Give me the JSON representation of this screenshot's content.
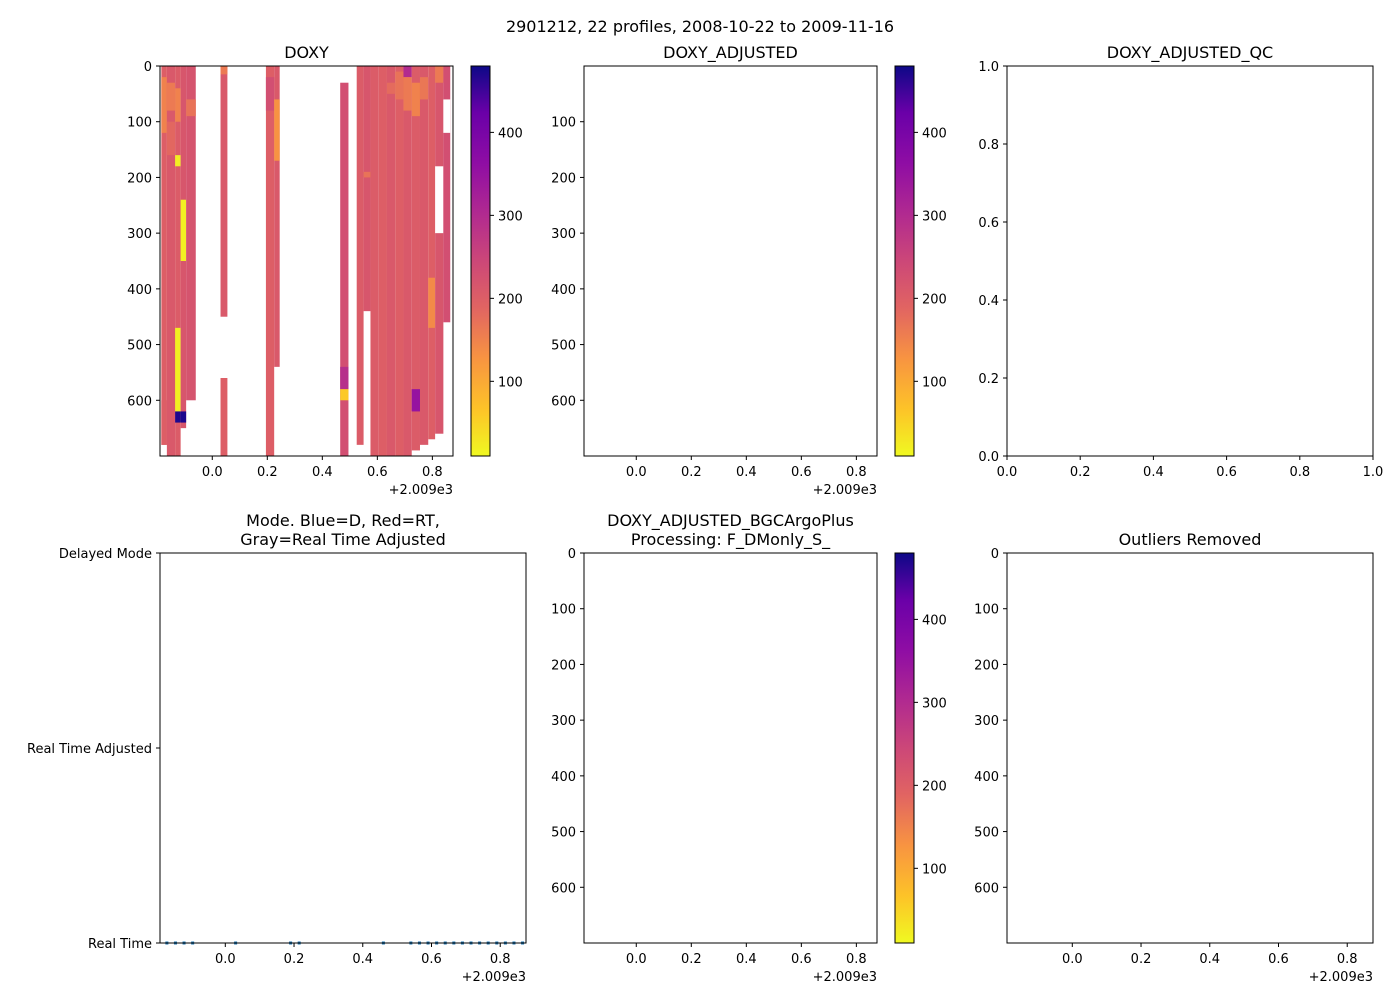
{
  "figure": {
    "suptitle": "2901212, 22 profiles, 2008-10-22 to 2009-11-16",
    "offset_label": "+2.009e3"
  },
  "chart_data": [
    {
      "id": "doxy",
      "type": "heatmap",
      "title": "DOXY",
      "xlim": [
        -0.19,
        0.875
      ],
      "ylim": [
        700,
        0
      ],
      "x_ticks": [
        "0.0",
        "0.2",
        "0.4",
        "0.6",
        "0.8"
      ],
      "y_ticks": [
        "0",
        "100",
        "200",
        "300",
        "400",
        "500",
        "600"
      ],
      "colormap": "plasma_r",
      "colorbar": {
        "range": [
          10,
          480
        ],
        "ticks": [
          "100",
          "200",
          "300",
          "400"
        ]
      },
      "columns": [
        {
          "x0": -0.185,
          "x1": -0.165,
          "z0": 0,
          "z1": 680,
          "value": 200,
          "patches": [
            {
              "z0": 20,
              "z1": 120,
              "value": 150
            },
            {
              "z0": 600,
              "z1": 680,
              "value": 200
            }
          ]
        },
        {
          "x0": -0.165,
          "x1": -0.135,
          "z0": 0,
          "z1": 700,
          "value": 210,
          "patches": [
            {
              "z0": 30,
              "z1": 80,
              "value": 160
            },
            {
              "z0": 100,
              "z1": 160,
              "value": 185
            }
          ]
        },
        {
          "x0": -0.135,
          "x1": -0.115,
          "z0": 0,
          "z1": 700,
          "value": 205,
          "patches": [
            {
              "z0": 40,
              "z1": 100,
              "value": 150
            },
            {
              "z0": 160,
              "z1": 180,
              "value": 20
            },
            {
              "z0": 470,
              "z1": 620,
              "value": 20
            },
            {
              "z0": 620,
              "z1": 640,
              "value": 470
            }
          ]
        },
        {
          "x0": -0.115,
          "x1": -0.095,
          "z0": 0,
          "z1": 650,
          "value": 215,
          "patches": [
            {
              "z0": 240,
              "z1": 350,
              "value": 20
            },
            {
              "z0": 620,
              "z1": 640,
              "value": 470
            }
          ]
        },
        {
          "x0": -0.095,
          "x1": -0.06,
          "z0": 0,
          "z1": 600,
          "value": 220,
          "patches": [
            {
              "z0": 60,
              "z1": 90,
              "value": 170
            }
          ]
        },
        {
          "x0": 0.03,
          "x1": 0.055,
          "z0": 0,
          "z1": 450,
          "value": 210,
          "patches": [
            {
              "z0": 0,
              "z1": 15,
              "value": 160
            }
          ]
        },
        {
          "x0": 0.03,
          "x1": 0.055,
          "z0": 560,
          "z1": 700,
          "value": 200,
          "patches": []
        },
        {
          "x0": 0.195,
          "x1": 0.225,
          "z0": 0,
          "z1": 700,
          "value": 200,
          "patches": [
            {
              "z0": 20,
              "z1": 80,
              "value": 230
            }
          ]
        },
        {
          "x0": 0.225,
          "x1": 0.245,
          "z0": 0,
          "z1": 540,
          "value": 210,
          "patches": [
            {
              "z0": 60,
              "z1": 170,
              "value": 130
            }
          ]
        },
        {
          "x0": 0.465,
          "x1": 0.495,
          "z0": 30,
          "z1": 700,
          "value": 230,
          "patches": [
            {
              "z0": 540,
              "z1": 580,
              "value": 290
            },
            {
              "z0": 580,
              "z1": 600,
              "value": 60
            }
          ]
        },
        {
          "x0": 0.525,
          "x1": 0.55,
          "z0": 0,
          "z1": 680,
          "value": 205,
          "patches": []
        },
        {
          "x0": 0.55,
          "x1": 0.575,
          "z0": 0,
          "z1": 440,
          "value": 215,
          "patches": [
            {
              "z0": 190,
              "z1": 200,
              "value": 170
            }
          ]
        },
        {
          "x0": 0.575,
          "x1": 0.605,
          "z0": 0,
          "z1": 700,
          "value": 205,
          "patches": []
        },
        {
          "x0": 0.605,
          "x1": 0.635,
          "z0": 0,
          "z1": 700,
          "value": 200,
          "patches": []
        },
        {
          "x0": 0.635,
          "x1": 0.665,
          "z0": 0,
          "z1": 700,
          "value": 210,
          "patches": [
            {
              "z0": 30,
              "z1": 50,
              "value": 180
            }
          ]
        },
        {
          "x0": 0.665,
          "x1": 0.695,
          "z0": 0,
          "z1": 700,
          "value": 200,
          "patches": [
            {
              "z0": 10,
              "z1": 60,
              "value": 170
            }
          ]
        },
        {
          "x0": 0.695,
          "x1": 0.725,
          "z0": 0,
          "z1": 700,
          "value": 210,
          "patches": [
            {
              "z0": 0,
              "z1": 20,
              "value": 300
            },
            {
              "z0": 20,
              "z1": 80,
              "value": 160
            }
          ]
        },
        {
          "x0": 0.725,
          "x1": 0.755,
          "z0": 0,
          "z1": 690,
          "value": 205,
          "patches": [
            {
              "z0": 30,
              "z1": 90,
              "value": 150
            },
            {
              "z0": 580,
              "z1": 620,
              "value": 350
            }
          ]
        },
        {
          "x0": 0.755,
          "x1": 0.785,
          "z0": 0,
          "z1": 680,
          "value": 210,
          "patches": [
            {
              "z0": 20,
              "z1": 60,
              "value": 165
            }
          ]
        },
        {
          "x0": 0.785,
          "x1": 0.81,
          "z0": 0,
          "z1": 670,
          "value": 200,
          "patches": [
            {
              "z0": 380,
              "z1": 470,
              "value": 140
            }
          ]
        },
        {
          "x0": 0.81,
          "x1": 0.84,
          "z0": 0,
          "z1": 660,
          "value": 215,
          "patches": [
            {
              "z0": 0,
              "z1": 30,
              "value": 160
            },
            {
              "z0": 180,
              "z1": 300,
              "value": null
            }
          ]
        },
        {
          "x0": 0.84,
          "x1": 0.865,
          "z0": 0,
          "z1": 460,
          "value": 230,
          "patches": [
            {
              "z0": 60,
              "z1": 120,
              "value": null
            }
          ]
        }
      ]
    },
    {
      "id": "doxy-adjusted",
      "type": "heatmap",
      "title": "DOXY_ADJUSTED",
      "xlim": [
        -0.19,
        0.875
      ],
      "ylim": [
        700,
        0
      ],
      "x_ticks": [
        "0.0",
        "0.2",
        "0.4",
        "0.6",
        "0.8"
      ],
      "y_ticks": [
        "100",
        "200",
        "300",
        "400",
        "500",
        "600"
      ],
      "colormap": "plasma_r",
      "colorbar": {
        "range": [
          10,
          480
        ],
        "ticks": [
          "100",
          "200",
          "300",
          "400"
        ]
      },
      "columns": []
    },
    {
      "id": "doxy-adjusted-qc",
      "type": "line",
      "title": "DOXY_ADJUSTED_QC",
      "xlim": [
        0,
        1
      ],
      "ylim": [
        0,
        1
      ],
      "x_ticks": [
        "0.0",
        "0.2",
        "0.4",
        "0.6",
        "0.8",
        "1.0"
      ],
      "y_ticks": [
        "0.0",
        "0.2",
        "0.4",
        "0.6",
        "0.8",
        "1.0"
      ],
      "series": []
    },
    {
      "id": "mode",
      "type": "scatter",
      "title_line1": "Mode. Blue=D, Red=RT,",
      "title_line2": "Gray=Real Time Adjusted",
      "xlim": [
        -0.19,
        0.875
      ],
      "x_ticks": [
        "0.0",
        "0.2",
        "0.4",
        "0.6",
        "0.8"
      ],
      "y_categories": [
        "Real Time",
        "Real Time Adjusted",
        "Delayed Mode"
      ],
      "color": "#1f77b4",
      "points": [
        {
          "x": -0.17,
          "mode": "Real Time"
        },
        {
          "x": -0.145,
          "mode": "Real Time"
        },
        {
          "x": -0.12,
          "mode": "Real Time"
        },
        {
          "x": -0.095,
          "mode": "Real Time"
        },
        {
          "x": 0.03,
          "mode": "Real Time"
        },
        {
          "x": 0.19,
          "mode": "Real Time"
        },
        {
          "x": 0.215,
          "mode": "Real Time"
        },
        {
          "x": 0.46,
          "mode": "Real Time"
        },
        {
          "x": 0.54,
          "mode": "Real Time"
        },
        {
          "x": 0.565,
          "mode": "Real Time"
        },
        {
          "x": 0.59,
          "mode": "Real Time"
        },
        {
          "x": 0.615,
          "mode": "Real Time"
        },
        {
          "x": 0.64,
          "mode": "Real Time"
        },
        {
          "x": 0.665,
          "mode": "Real Time"
        },
        {
          "x": 0.69,
          "mode": "Real Time"
        },
        {
          "x": 0.715,
          "mode": "Real Time"
        },
        {
          "x": 0.74,
          "mode": "Real Time"
        },
        {
          "x": 0.765,
          "mode": "Real Time"
        },
        {
          "x": 0.79,
          "mode": "Real Time"
        },
        {
          "x": 0.815,
          "mode": "Real Time"
        },
        {
          "x": 0.84,
          "mode": "Real Time"
        },
        {
          "x": 0.865,
          "mode": "Real Time"
        }
      ]
    },
    {
      "id": "bgc-plus",
      "type": "heatmap",
      "title_line1": "DOXY_ADJUSTED_BGCArgoPlus",
      "title_line2": "Processing: F_DMonly_S_",
      "xlim": [
        -0.19,
        0.875
      ],
      "ylim": [
        700,
        0
      ],
      "x_ticks": [
        "0.0",
        "0.2",
        "0.4",
        "0.6",
        "0.8"
      ],
      "y_ticks": [
        "0",
        "100",
        "200",
        "300",
        "400",
        "500",
        "600"
      ],
      "colormap": "plasma_r",
      "colorbar": {
        "range": [
          10,
          480
        ],
        "ticks": [
          "100",
          "200",
          "300",
          "400"
        ]
      },
      "columns": []
    },
    {
      "id": "outliers",
      "type": "heatmap",
      "title": "Outliers Removed",
      "xlim": [
        -0.19,
        0.875
      ],
      "ylim": [
        700,
        0
      ],
      "x_ticks": [
        "0.0",
        "0.2",
        "0.4",
        "0.6",
        "0.8"
      ],
      "y_ticks": [
        "0",
        "100",
        "200",
        "300",
        "400",
        "500",
        "600"
      ],
      "columns": []
    }
  ]
}
